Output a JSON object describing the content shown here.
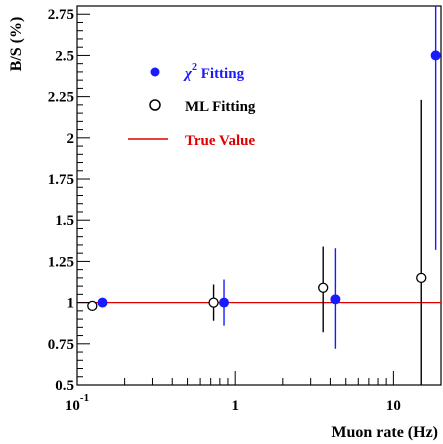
{
  "chart_data": {
    "type": "scatter",
    "title": "",
    "xlabel": "Muon rate (Hz)",
    "ylabel": "B/S (%)",
    "x_scale": "log",
    "xlim": [
      0.1,
      20
    ],
    "ylim": [
      0.5,
      2.8
    ],
    "x_ticks": [
      {
        "value": 0.1,
        "base": "10",
        "exp": "-1"
      },
      {
        "value": 1,
        "base": "1",
        "exp": ""
      },
      {
        "value": 10,
        "base": "10",
        "exp": ""
      }
    ],
    "y_ticks": [
      {
        "value": 0.5,
        "label": "0.5"
      },
      {
        "value": 0.75,
        "label": "0.75"
      },
      {
        "value": 1,
        "label": "1"
      },
      {
        "value": 1.25,
        "label": "1.25"
      },
      {
        "value": 1.5,
        "label": "1.5"
      },
      {
        "value": 1.75,
        "label": "1.75"
      },
      {
        "value": 2,
        "label": "2"
      },
      {
        "value": 2.25,
        "label": "2.25"
      },
      {
        "value": 2.5,
        "label": "2.5"
      },
      {
        "value": 2.75,
        "label": "2.75"
      }
    ],
    "grid": false,
    "legend_position": "top-left",
    "legend": [
      {
        "name": "χ² Fitting",
        "label_main": "χ",
        "label_sup": "2",
        "label_rest": " Fitting",
        "marker": "filled-circle",
        "color": "#1a1aff"
      },
      {
        "name": "ML Fitting",
        "label_main": "ML Fitting",
        "label_sup": "",
        "label_rest": "",
        "marker": "open-circle",
        "color": "#000000"
      },
      {
        "name": "True Value",
        "label_main": "True Value",
        "label_sup": "",
        "label_rest": "",
        "marker": "line",
        "color": "#dd0000"
      }
    ],
    "series": [
      {
        "name": "χ² Fitting",
        "marker": "filled-circle",
        "color": "#1a1aff",
        "points": [
          {
            "x": 0.145,
            "y": 1.0,
            "ylow": 0.99,
            "yhigh": 1.01
          },
          {
            "x": 0.85,
            "y": 1.0,
            "ylow": 0.86,
            "yhigh": 1.14
          },
          {
            "x": 4.3,
            "y": 1.02,
            "ylow": 0.72,
            "yhigh": 1.33
          },
          {
            "x": 18.5,
            "y": 2.5,
            "ylow": 1.32,
            "yhigh": 2.8
          }
        ]
      },
      {
        "name": "ML Fitting",
        "marker": "open-circle",
        "color": "#000000",
        "points": [
          {
            "x": 0.125,
            "y": 0.98,
            "ylow": 0.96,
            "yhigh": 1.0
          },
          {
            "x": 0.73,
            "y": 1.0,
            "ylow": 0.89,
            "yhigh": 1.11
          },
          {
            "x": 3.6,
            "y": 1.09,
            "ylow": 0.82,
            "yhigh": 1.34
          },
          {
            "x": 15.0,
            "y": 1.15,
            "ylow": 0.5,
            "yhigh": 2.23
          }
        ]
      }
    ],
    "reference_lines": [
      {
        "name": "True Value",
        "y": 1.0,
        "color": "#dd0000"
      }
    ]
  }
}
